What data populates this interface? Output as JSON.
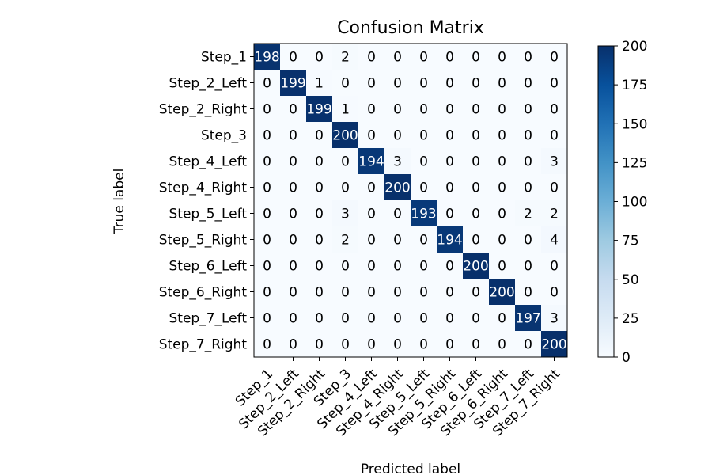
{
  "chart_data": {
    "type": "heatmap",
    "title": "Confusion Matrix",
    "xlabel": "Predicted label",
    "ylabel": "True label",
    "colormap": "Blues",
    "color_range": [
      0,
      200
    ],
    "colorbar_ticks": [
      "0",
      "25",
      "50",
      "75",
      "100",
      "125",
      "150",
      "175",
      "200"
    ],
    "colors": {
      "low": "#f7fbff",
      "high": "#08306b"
    },
    "row_labels": [
      "Step_1",
      "Step_2_Left",
      "Step_2_Right",
      "Step_3",
      "Step_4_Left",
      "Step_4_Right",
      "Step_5_Left",
      "Step_5_Right",
      "Step_6_Left",
      "Step_6_Right",
      "Step_7_Left",
      "Step_7_Right"
    ],
    "col_labels": [
      "Step_1",
      "Step_2_Left",
      "Step_2_Right",
      "Step_3",
      "Step_4_Left",
      "Step_4_Right",
      "Step_5_Left",
      "Step_5_Right",
      "Step_6_Left",
      "Step_6_Right",
      "Step_7_Left",
      "Step_7_Right"
    ],
    "matrix": [
      [
        198,
        0,
        0,
        2,
        0,
        0,
        0,
        0,
        0,
        0,
        0,
        0
      ],
      [
        0,
        199,
        1,
        0,
        0,
        0,
        0,
        0,
        0,
        0,
        0,
        0
      ],
      [
        0,
        0,
        199,
        1,
        0,
        0,
        0,
        0,
        0,
        0,
        0,
        0
      ],
      [
        0,
        0,
        0,
        200,
        0,
        0,
        0,
        0,
        0,
        0,
        0,
        0
      ],
      [
        0,
        0,
        0,
        0,
        194,
        3,
        0,
        0,
        0,
        0,
        0,
        3
      ],
      [
        0,
        0,
        0,
        0,
        0,
        200,
        0,
        0,
        0,
        0,
        0,
        0
      ],
      [
        0,
        0,
        0,
        3,
        0,
        0,
        193,
        0,
        0,
        0,
        2,
        2
      ],
      [
        0,
        0,
        0,
        2,
        0,
        0,
        0,
        194,
        0,
        0,
        0,
        4
      ],
      [
        0,
        0,
        0,
        0,
        0,
        0,
        0,
        0,
        200,
        0,
        0,
        0
      ],
      [
        0,
        0,
        0,
        0,
        0,
        0,
        0,
        0,
        0,
        200,
        0,
        0
      ],
      [
        0,
        0,
        0,
        0,
        0,
        0,
        0,
        0,
        0,
        0,
        197,
        3
      ],
      [
        0,
        0,
        0,
        0,
        0,
        0,
        0,
        0,
        0,
        0,
        0,
        200
      ]
    ]
  }
}
